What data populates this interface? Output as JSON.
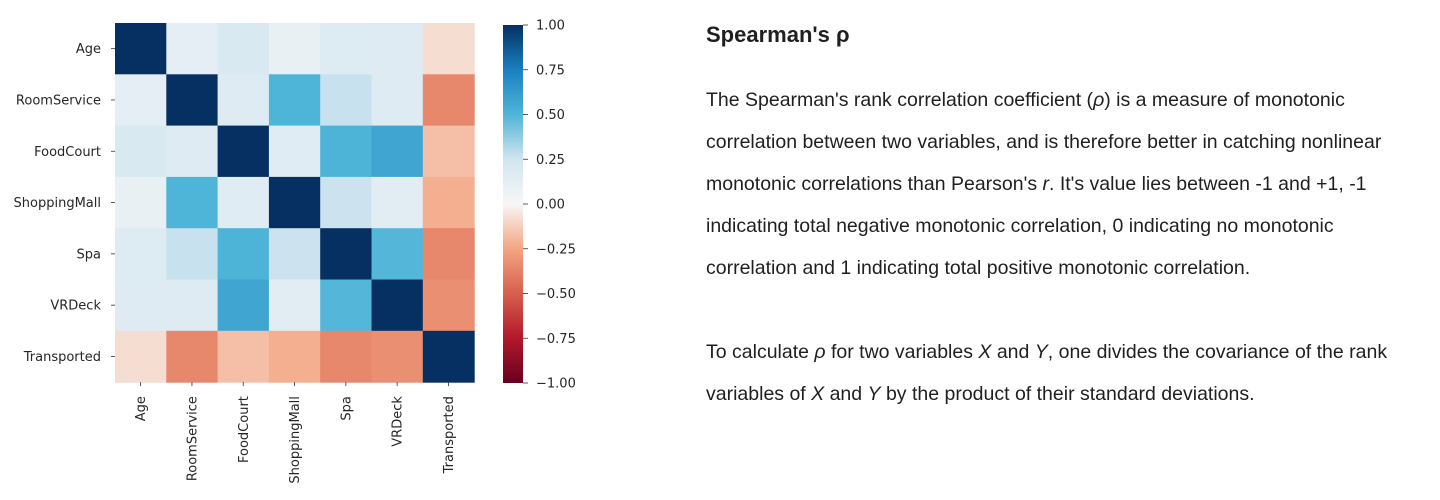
{
  "chart_data": {
    "type": "heatmap",
    "title": "",
    "xlabel": "",
    "ylabel": "",
    "rows": [
      "Age",
      "RoomService",
      "FoodCourt",
      "ShoppingMall",
      "Spa",
      "VRDeck",
      "Transported"
    ],
    "columns": [
      "Age",
      "RoomService",
      "FoodCourt",
      "ShoppingMall",
      "Spa",
      "VRDeck",
      "Transported"
    ],
    "values": [
      [
        1.0,
        0.12,
        0.2,
        0.1,
        0.17,
        0.16,
        -0.08
      ],
      [
        0.12,
        1.0,
        0.16,
        0.5,
        0.27,
        0.16,
        -0.36
      ],
      [
        0.2,
        0.16,
        1.0,
        0.15,
        0.51,
        0.57,
        -0.17
      ],
      [
        0.1,
        0.5,
        0.15,
        1.0,
        0.26,
        0.14,
        -0.22
      ],
      [
        0.17,
        0.27,
        0.51,
        0.26,
        1.0,
        0.49,
        -0.36
      ],
      [
        0.16,
        0.16,
        0.57,
        0.14,
        0.49,
        1.0,
        -0.33
      ],
      [
        -0.08,
        -0.36,
        -0.17,
        -0.22,
        -0.36,
        -0.33,
        1.0
      ]
    ],
    "colormap": "RdBu",
    "vmin": -1.0,
    "vmax": 1.0,
    "colorbar_ticks": [
      "1.00",
      "0.75",
      "0.50",
      "0.25",
      "0.00",
      "−0.25",
      "−0.50",
      "−0.75",
      "−1.00"
    ],
    "colorbar_tick_values": [
      1.0,
      0.75,
      0.5,
      0.25,
      0.0,
      -0.25,
      -0.5,
      -0.75,
      -1.0
    ],
    "colormap_stops": [
      {
        "v": -1.0,
        "color": "#67001f"
      },
      {
        "v": -0.75,
        "color": "#b2182b"
      },
      {
        "v": -0.5,
        "color": "#d6604d"
      },
      {
        "v": -0.25,
        "color": "#f4a582"
      },
      {
        "v": 0.0,
        "color": "#f7f7f7"
      },
      {
        "v": 0.25,
        "color": "#d1e5f0"
      },
      {
        "v": 0.5,
        "color": "#4fb5d8"
      },
      {
        "v": 0.75,
        "color": "#1a80bf"
      },
      {
        "v": 1.0,
        "color": "#053061"
      }
    ],
    "grid": false
  },
  "panel": {
    "title": "Spearman's ρ",
    "paragraph1": [
      {
        "t": "The Spearman's rank correlation coefficient (",
        "i": false
      },
      {
        "t": "ρ",
        "i": true
      },
      {
        "t": ") is a measure of monotonic correlation between two variables, and is therefore better in catching nonlinear monotonic correlations than Pearson's ",
        "i": false
      },
      {
        "t": "r",
        "i": true
      },
      {
        "t": ". It's value lies between -1 and +1, -1 indicating total negative monotonic correlation, 0 indicating no monotonic correlation and 1 indicating total positive monotonic correlation.",
        "i": false
      }
    ],
    "paragraph2": [
      {
        "t": "To calculate ",
        "i": false
      },
      {
        "t": "ρ",
        "i": true
      },
      {
        "t": " for two variables ",
        "i": false
      },
      {
        "t": "X",
        "i": true
      },
      {
        "t": " and ",
        "i": false
      },
      {
        "t": "Y",
        "i": true
      },
      {
        "t": ", one divides the covariance of the rank variables of ",
        "i": false
      },
      {
        "t": "X",
        "i": true
      },
      {
        "t": " and ",
        "i": false
      },
      {
        "t": "Y",
        "i": true
      },
      {
        "t": " by the product of their standard deviations.",
        "i": false
      }
    ]
  }
}
